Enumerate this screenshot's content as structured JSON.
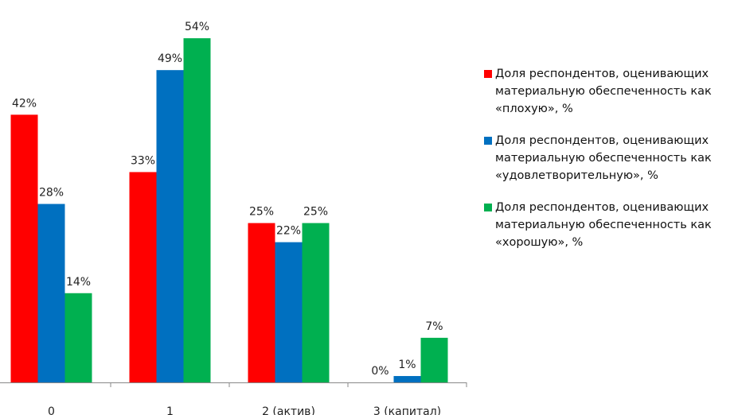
{
  "chart_data": {
    "type": "bar",
    "categories": [
      "0",
      "1",
      "2 (актив)",
      "3 (капитал)"
    ],
    "series": [
      {
        "name": "Доля респондентов, оценивающих материальную обеспеченность как «плохую», %",
        "color": "#ff0000",
        "values": [
          42,
          33,
          25,
          0
        ],
        "labels": [
          "42%",
          "33%",
          "25%",
          "0%"
        ]
      },
      {
        "name": "Доля респондентов, оценивающих материальную обеспеченность как «удовлетворительную», %",
        "color": "#0070c0",
        "values": [
          28,
          49,
          22,
          1
        ],
        "labels": [
          "28%",
          "49%",
          "22%",
          "1%"
        ]
      },
      {
        "name": "Доля респондентов, оценивающих материальную обеспеченность как «хорошую», %",
        "color": "#00b050",
        "values": [
          14,
          54,
          25,
          7
        ],
        "labels": [
          "14%",
          "54%",
          "25%",
          "7%"
        ]
      }
    ],
    "ylim": [
      0,
      60
    ],
    "grid": false,
    "y_axis_visible": false,
    "legend_position": "right"
  }
}
